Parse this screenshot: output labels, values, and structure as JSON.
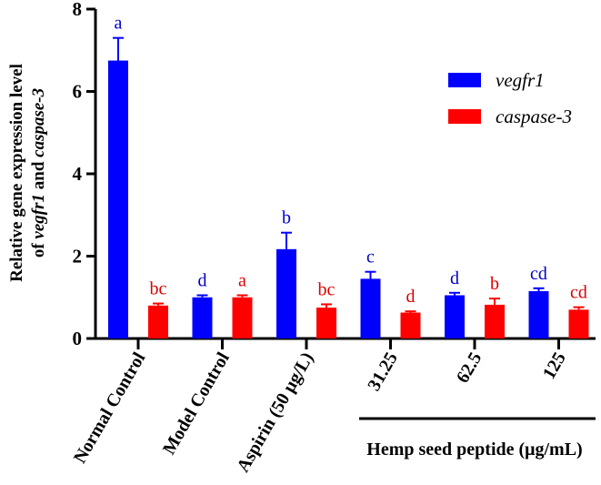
{
  "chart_data": {
    "type": "bar",
    "title": "",
    "ylabel_line1": "Relative gene expression level",
    "ylabel_line2_parts": [
      {
        "text": "of ",
        "italic": false
      },
      {
        "text": "vegfr1",
        "italic": true
      },
      {
        "text": " and ",
        "italic": false
      },
      {
        "text": "caspase-3",
        "italic": true
      }
    ],
    "xlabel": "",
    "ylim": [
      0,
      8
    ],
    "yticks": [
      "0",
      "2",
      "4",
      "6",
      "8"
    ],
    "ytick_values": [
      0,
      2,
      4,
      6,
      8
    ],
    "categories": [
      "Normal Control",
      "Model Control",
      "Aspirin (50 μg/L)",
      "31.25",
      "62.5",
      "125"
    ],
    "group_label": "Hemp seed peptide (μg/mL)",
    "legend_position": "top-right",
    "series": [
      {
        "name": "vegfr1",
        "color": "#0000ff",
        "label_color": "#0000cc",
        "values": [
          6.75,
          1.0,
          2.17,
          1.45,
          1.05,
          1.15
        ],
        "errors": [
          0.55,
          0.05,
          0.4,
          0.17,
          0.06,
          0.07
        ],
        "letters": [
          "a",
          "d",
          "b",
          "c",
          "d",
          "cd"
        ]
      },
      {
        "name": "caspase-3",
        "color": "#ff0000",
        "label_color": "#dd0000",
        "values": [
          0.8,
          1.0,
          0.75,
          0.63,
          0.82,
          0.7
        ],
        "errors": [
          0.05,
          0.05,
          0.08,
          0.03,
          0.15,
          0.06
        ],
        "letters": [
          "bc",
          "a",
          "bc",
          "d",
          "b",
          "cd"
        ]
      }
    ]
  }
}
